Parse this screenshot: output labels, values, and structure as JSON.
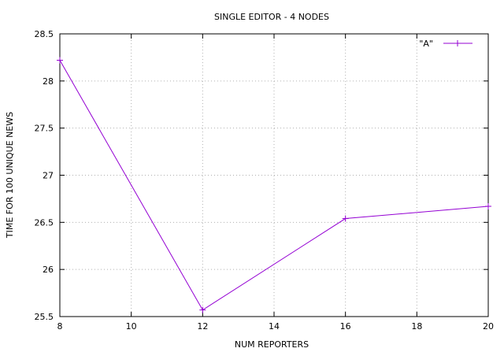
{
  "chart_data": {
    "type": "line",
    "title": "SINGLE EDITOR - 4 NODES",
    "xlabel": "NUM REPORTERS",
    "ylabel": "TIME FOR 100 UNIQUE NEWS",
    "xlim": [
      8,
      20
    ],
    "ylim": [
      25.5,
      28.5
    ],
    "xticks": [
      8,
      10,
      12,
      14,
      16,
      18,
      20
    ],
    "yticks": [
      25.5,
      26,
      26.5,
      27,
      27.5,
      28,
      28.5
    ],
    "xtick_labels": [
      "8",
      "10",
      "12",
      "14",
      "16",
      "18",
      "20"
    ],
    "ytick_labels": [
      "25.5",
      "26",
      "26.5",
      "27",
      "27.5",
      "28",
      "28.5"
    ],
    "grid": true,
    "legend_position": "top-right",
    "series": [
      {
        "name": "\"A\"",
        "color": "#9400d3",
        "marker": "plus",
        "x": [
          8,
          12,
          16,
          20
        ],
        "y": [
          28.22,
          25.57,
          26.54,
          26.67
        ]
      }
    ]
  }
}
